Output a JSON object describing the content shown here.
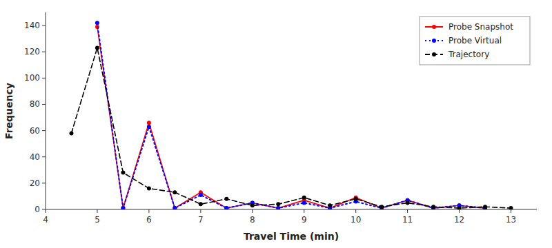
{
  "chart_data": {
    "type": "line",
    "xlabel": "Travel Time (min)",
    "ylabel": "Frequency",
    "xlim": [
      4,
      13.5
    ],
    "ylim": [
      0,
      150
    ],
    "xticks": [
      4,
      5,
      6,
      7,
      8,
      9,
      10,
      11,
      12,
      13
    ],
    "yticks": [
      0,
      20,
      40,
      60,
      80,
      100,
      120,
      140
    ],
    "grid": false,
    "legend": "upper right",
    "series": [
      {
        "name": "Probe Snapshot",
        "color": "#ff0000",
        "line_style": "solid",
        "marker": "circle",
        "x": [
          5.0,
          5.5,
          6.0,
          6.5,
          7.0,
          7.5,
          8.0,
          8.5,
          9.0,
          9.5,
          10.0,
          10.5,
          11.0,
          11.5,
          12.0,
          12.5
        ],
        "values": [
          139,
          1,
          66,
          1,
          13,
          1,
          5,
          1,
          7,
          1,
          9,
          1,
          7,
          1,
          3,
          1
        ]
      },
      {
        "name": "Probe Virtual",
        "color": "#0000ff",
        "line_style": "dotted",
        "marker": "circle",
        "x": [
          5.0,
          5.5,
          6.0,
          6.5,
          7.0,
          7.5,
          8.0,
          8.5,
          9.0,
          9.5,
          10.0,
          10.5,
          11.0,
          11.5,
          12.0,
          12.5
        ],
        "values": [
          142,
          1,
          63,
          1,
          11,
          1,
          5,
          1,
          5,
          1,
          6,
          1,
          7,
          1,
          3,
          1
        ]
      },
      {
        "name": "Trajectory",
        "color": "#000000",
        "line_style": "dashed",
        "marker": "circle",
        "x": [
          4.5,
          5.0,
          5.5,
          6.0,
          6.5,
          7.0,
          7.5,
          8.0,
          8.5,
          9.0,
          9.5,
          10.0,
          10.5,
          11.0,
          11.5,
          12.0,
          12.5,
          13.0
        ],
        "values": [
          58,
          123,
          28,
          16,
          13,
          4,
          8,
          3,
          4,
          9,
          3,
          8,
          2,
          5,
          2,
          1,
          2,
          1
        ]
      }
    ]
  }
}
